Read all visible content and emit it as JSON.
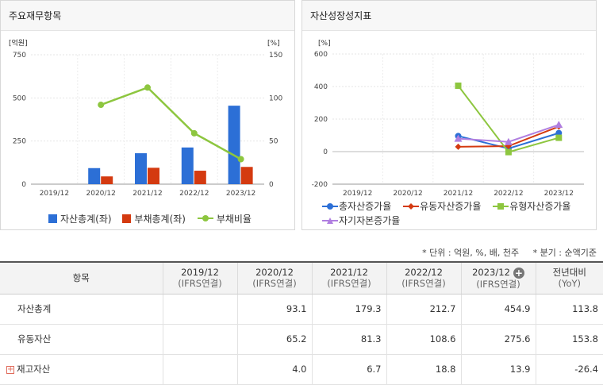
{
  "chart_data": [
    {
      "type": "bar",
      "title": "주요재무항목",
      "categories": [
        "2019/12",
        "2020/12",
        "2021/12",
        "2022/12",
        "2023/12"
      ],
      "left_axis_unit": "[억원]",
      "right_axis_unit": "[%]",
      "left_ylim": [
        0,
        750
      ],
      "right_ylim": [
        0,
        150
      ],
      "left_ticks": [
        "750",
        "500",
        "250",
        "0"
      ],
      "right_ticks": [
        "150",
        "100",
        "50",
        "0"
      ],
      "series": [
        {
          "name": "자산총계(좌)",
          "kind": "bar",
          "axis": "left",
          "color": "#2c6fd6",
          "values": [
            null,
            93.1,
            179.3,
            212.7,
            454.9
          ]
        },
        {
          "name": "부채총계(좌)",
          "kind": "bar",
          "axis": "left",
          "color": "#d43a10",
          "values": [
            null,
            45,
            95,
            78,
            100
          ]
        },
        {
          "name": "부채비율",
          "kind": "line",
          "axis": "right",
          "color": "#8dc63f",
          "values": [
            null,
            92,
            112,
            59,
            29
          ]
        }
      ],
      "grid": true,
      "legend": "bottom"
    },
    {
      "type": "line",
      "title": "자산성장성지표",
      "categories": [
        "2019/12",
        "2020/12",
        "2021/12",
        "2022/12",
        "2023/12"
      ],
      "axis_unit": "[%]",
      "ylim": [
        -200,
        600
      ],
      "ticks": [
        "600",
        "400",
        "200",
        "0",
        "-200"
      ],
      "series": [
        {
          "name": "총자산증가율",
          "marker": "circle",
          "color": "#2c6fd6",
          "values": [
            null,
            null,
            96,
            19,
            114
          ]
        },
        {
          "name": "유동자산증가율",
          "marker": "diamond",
          "color": "#d43a10",
          "values": [
            null,
            null,
            30,
            34,
            154
          ]
        },
        {
          "name": "유형자산증가율",
          "marker": "square",
          "color": "#8dc63f",
          "values": [
            null,
            null,
            405,
            -3,
            85
          ]
        },
        {
          "name": "자기자본증가율",
          "marker": "triangle",
          "color": "#b07fe0",
          "values": [
            null,
            null,
            80,
            60,
            165
          ]
        }
      ],
      "grid": true,
      "legend": "bottom"
    }
  ],
  "note": {
    "unit": "* 단위 : 억원, %, 배, 천주",
    "quarter": "* 분기 : 순액기준"
  },
  "table": {
    "header_item": "항목",
    "columns": [
      {
        "year": "2019/12",
        "basis": "(IFRS연결)"
      },
      {
        "year": "2020/12",
        "basis": "(IFRS연결)"
      },
      {
        "year": "2021/12",
        "basis": "(IFRS연결)"
      },
      {
        "year": "2022/12",
        "basis": "(IFRS연결)"
      },
      {
        "year": "2023/12",
        "basis": "(IFRS연결)"
      }
    ],
    "yoy_header": "전년대비",
    "yoy_sub": "(YoY)",
    "rows": [
      {
        "label": "자산총계",
        "values": [
          "",
          "93.1",
          "179.3",
          "212.7",
          "454.9"
        ],
        "yoy": "113.8"
      },
      {
        "label": "유동자산",
        "values": [
          "",
          "65.2",
          "81.3",
          "108.6",
          "275.6"
        ],
        "yoy": "153.8"
      },
      {
        "label": "재고자산",
        "values": [
          "",
          "4.0",
          "6.7",
          "18.8",
          "13.9"
        ],
        "yoy": "-26.4"
      }
    ]
  }
}
